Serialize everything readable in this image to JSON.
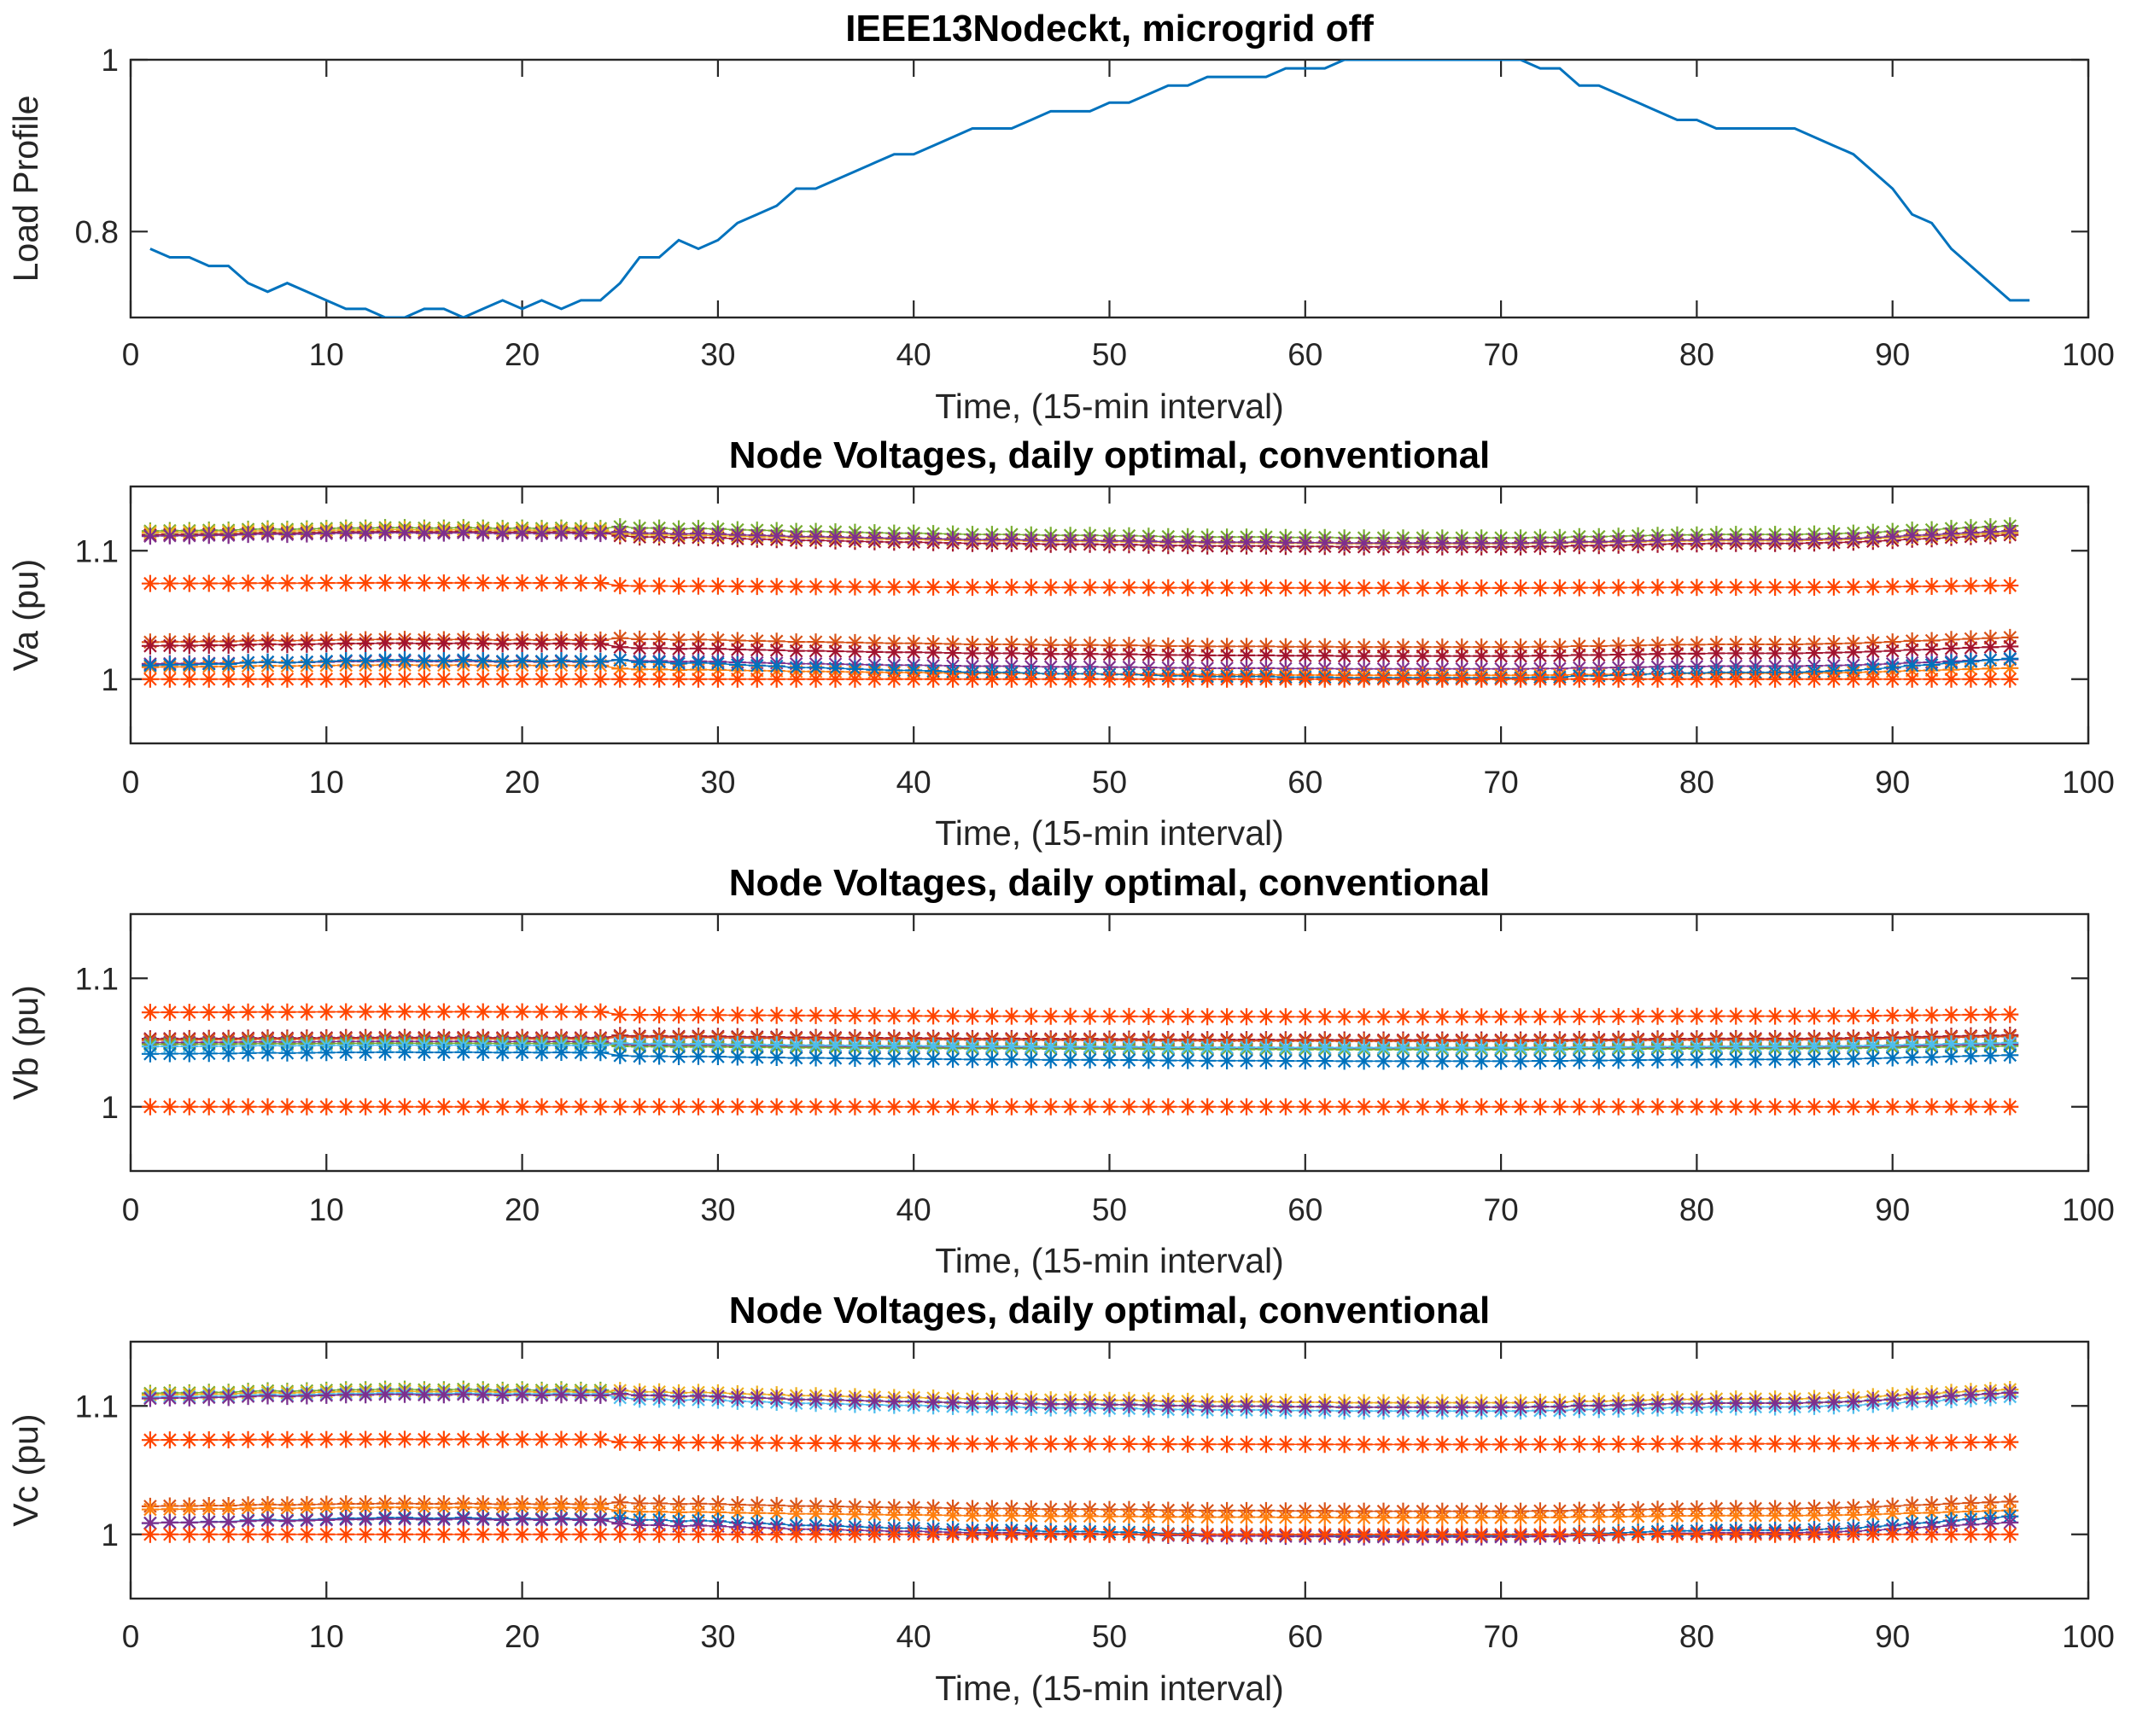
{
  "chart_data": [
    {
      "type": "line",
      "title": "IEEE13Nodeckt, microgrid off",
      "xlabel": "Time, (15-min interval)",
      "ylabel": "Load Profile",
      "xlim": [
        0,
        100
      ],
      "ylim": [
        0.7,
        1.0
      ],
      "xticks": [
        0,
        10,
        20,
        30,
        40,
        50,
        60,
        70,
        80,
        90,
        100
      ],
      "yticks": [
        0.8,
        1
      ],
      "ytick_labels": [
        "0.8",
        "1"
      ],
      "grid": false,
      "series": [
        {
          "color": "#0072bd",
          "x_start": 1,
          "values": [
            0.78,
            0.77,
            0.77,
            0.76,
            0.76,
            0.74,
            0.73,
            0.74,
            0.73,
            0.72,
            0.71,
            0.71,
            0.7,
            0.7,
            0.71,
            0.71,
            0.7,
            0.71,
            0.72,
            0.71,
            0.72,
            0.71,
            0.72,
            0.72,
            0.74,
            0.77,
            0.77,
            0.79,
            0.78,
            0.79,
            0.81,
            0.82,
            0.83,
            0.85,
            0.85,
            0.86,
            0.87,
            0.88,
            0.89,
            0.89,
            0.9,
            0.91,
            0.92,
            0.92,
            0.92,
            0.93,
            0.94,
            0.94,
            0.94,
            0.95,
            0.95,
            0.96,
            0.97,
            0.97,
            0.98,
            0.98,
            0.98,
            0.98,
            0.99,
            0.99,
            0.99,
            1.0,
            1.0,
            1.0,
            1.0,
            1.0,
            1.0,
            1.0,
            1.0,
            1.0,
            1.0,
            0.99,
            0.99,
            0.97,
            0.97,
            0.96,
            0.95,
            0.94,
            0.93,
            0.93,
            0.92,
            0.92,
            0.92,
            0.92,
            0.92,
            0.91,
            0.9,
            0.89,
            0.87,
            0.85,
            0.82,
            0.81,
            0.78,
            0.76,
            0.74,
            0.72,
            0.72
          ]
        }
      ]
    },
    {
      "type": "scatter",
      "marker": "*",
      "title": "Node Voltages, daily optimal, conventional",
      "xlabel": "Time, (15-min interval)",
      "ylabel": "Va (pu)",
      "xlim": [
        0,
        100
      ],
      "ylim": [
        0.95,
        1.15
      ],
      "xticks": [
        0,
        10,
        20,
        30,
        40,
        50,
        60,
        70,
        80,
        90,
        100
      ],
      "yticks": [
        1.0,
        1.1
      ],
      "ytick_labels": [
        "1",
        "1.1"
      ],
      "grid": false,
      "x_range": [
        1,
        96
      ],
      "series": [
        {
          "color": "#a2142f",
          "base": 1.11,
          "amp": 0.01
        },
        {
          "color": "#77ac30",
          "base": 1.113,
          "amp": 0.01
        },
        {
          "color": "#edb120",
          "base": 1.112,
          "amp": 0.009
        },
        {
          "color": "#7e2f8e",
          "base": 1.109,
          "amp": 0.01
        },
        {
          "color": "#ff4500",
          "base": 1.074,
          "amp": 0.002
        },
        {
          "color": "#d95319",
          "base": 1.027,
          "amp": 0.008
        },
        {
          "color": "#a2142f",
          "base": 1.024,
          "amp": 0.008
        },
        {
          "color": "#7e2f8e",
          "base": 1.01,
          "amp": 0.008
        },
        {
          "color": "#ff7f0e",
          "base": 1.008,
          "amp": 0.006
        },
        {
          "color": "#0072bd",
          "base": 1.007,
          "amp": 0.016
        },
        {
          "color": "#ff4500",
          "base": 1.0,
          "amp": 0.0
        }
      ]
    },
    {
      "type": "scatter",
      "marker": "*",
      "title": "Node Voltages, daily optimal, conventional",
      "xlabel": "Time, (15-min interval)",
      "ylabel": "Vb (pu)",
      "xlim": [
        0,
        100
      ],
      "ylim": [
        0.95,
        1.15
      ],
      "xticks": [
        0,
        10,
        20,
        30,
        40,
        50,
        60,
        70,
        80,
        90,
        100
      ],
      "yticks": [
        1.0,
        1.1
      ],
      "ytick_labels": [
        "1",
        "1.1"
      ],
      "grid": false,
      "x_range": [
        1,
        96
      ],
      "series": [
        {
          "color": "#ff4500",
          "base": 1.073,
          "amp": 0.002
        },
        {
          "color": "#a2142f",
          "base": 1.052,
          "amp": 0.004
        },
        {
          "color": "#7e2f8e",
          "base": 1.049,
          "amp": 0.004
        },
        {
          "color": "#d95319",
          "base": 1.051,
          "amp": 0.004
        },
        {
          "color": "#77ac30",
          "base": 1.048,
          "amp": 0.003
        },
        {
          "color": "#4dbeee",
          "base": 1.046,
          "amp": 0.004
        },
        {
          "color": "#0072bd",
          "base": 1.04,
          "amp": 0.005
        },
        {
          "color": "#ff4500",
          "base": 1.0,
          "amp": 0.0
        }
      ]
    },
    {
      "type": "scatter",
      "marker": "*",
      "title": "Node Voltages, daily optimal, conventional",
      "xlabel": "Time, (15-min interval)",
      "ylabel": "Vc (pu)",
      "xlim": [
        0,
        100
      ],
      "ylim": [
        0.95,
        1.15
      ],
      "xticks": [
        0,
        10,
        20,
        30,
        40,
        50,
        60,
        70,
        80,
        90,
        100
      ],
      "yticks": [
        1.0,
        1.1
      ],
      "ytick_labels": [
        "1",
        "1.1"
      ],
      "grid": false,
      "x_range": [
        1,
        96
      ],
      "series": [
        {
          "color": "#77ac30",
          "base": 1.107,
          "amp": 0.012
        },
        {
          "color": "#edb120",
          "base": 1.106,
          "amp": 0.011
        },
        {
          "color": "#4dbeee",
          "base": 1.104,
          "amp": 0.012
        },
        {
          "color": "#7e2f8e",
          "base": 1.103,
          "amp": 0.012
        },
        {
          "color": "#ff4500",
          "base": 1.073,
          "amp": 0.002
        },
        {
          "color": "#d95319",
          "base": 1.02,
          "amp": 0.008
        },
        {
          "color": "#ff7f0e",
          "base": 1.018,
          "amp": 0.006
        },
        {
          "color": "#0072bd",
          "base": 1.005,
          "amp": 0.016
        },
        {
          "color": "#7e2f8e",
          "base": 1.006,
          "amp": 0.012
        },
        {
          "color": "#ff4500",
          "base": 1.0,
          "amp": 0.0
        }
      ]
    }
  ]
}
